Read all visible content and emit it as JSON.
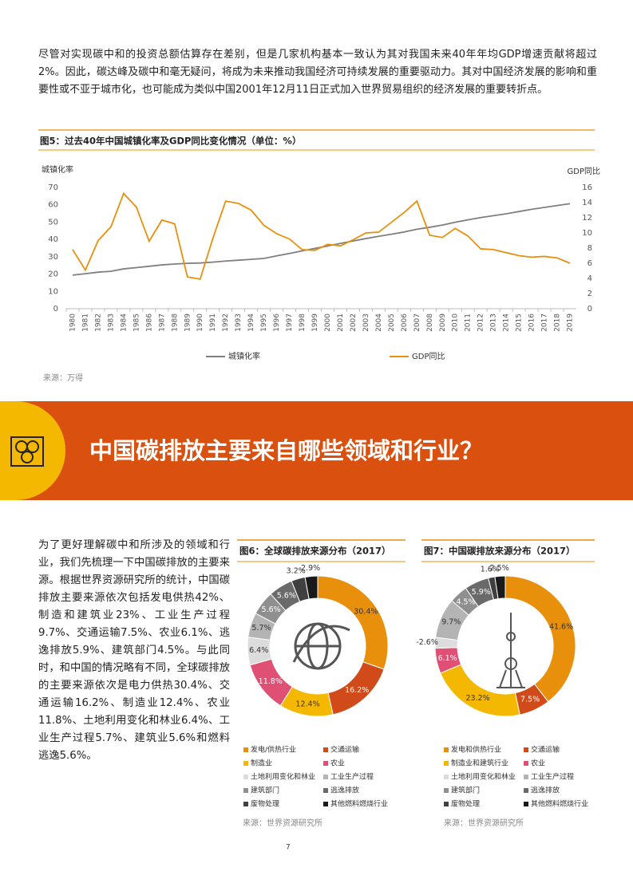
{
  "intro": "尽管对实现碳中和的投资总额估算存在差别，但是几家机构基本一致认为其对我国未来40年年均GDP增速贡献将超过2%。因此，碳达峰及碳中和毫无疑问，将成为未来推动我国经济可持续发展的重要驱动力。其对中国经济发展的影响和重要性或不亚于城市化，也可能成为类似中国2001年12月11日正式加入世界贸易组织的经济发展的重要转折点。",
  "banner": {
    "title": "中国碳排放主要来自哪些领域和行业？"
  },
  "body": "为了更好理解碳中和所涉及的领域和行业，我们先梳理一下中国碳排放的主要来源。根据世界资源研究所的统计，中国碳排放主要来源依次包括发电供热42%、制造和建筑业23%、工业生产过程9.7%、交通运输7.5%、农业6.1%、逃逸排放5.9%、建筑部门4.5%。与此同时，和中国的情况略有不同，全球碳排放的主要来源依次是电力供热30.4%、交通运输16.2%、制造业12.4%、农业11.8%、土地利用变化和林业6.4%、工业生产过程5.7%、建筑业5.6%和燃料逃逸5.6%。",
  "page_number": "7",
  "chart_data": [
    {
      "type": "line",
      "title": "图5：过去40年中国城镇化率及GDP同比变化情况（单位：%）",
      "ylabel": "城镇化率",
      "y2label": "GDP同比",
      "source": "来源：万得",
      "categories": [
        "1980",
        "1981",
        "1982",
        "1983",
        "1984",
        "1985",
        "1986",
        "1987",
        "1988",
        "1989",
        "1990",
        "1991",
        "1992",
        "1993",
        "1994",
        "1995",
        "1996",
        "1997",
        "1998",
        "1999",
        "2000",
        "2001",
        "2002",
        "2003",
        "2004",
        "2005",
        "2006",
        "2007",
        "2008",
        "2009",
        "2010",
        "2011",
        "2012",
        "2013",
        "2014",
        "2015",
        "2016",
        "2017",
        "2018",
        "2019"
      ],
      "series": [
        {
          "name": "城镇化率",
          "color": "#7f7f7f",
          "values": [
            19.4,
            20.2,
            21.1,
            21.6,
            23.0,
            23.7,
            24.5,
            25.3,
            25.8,
            26.2,
            26.4,
            26.9,
            27.5,
            28.0,
            28.5,
            29.0,
            30.5,
            31.9,
            33.4,
            34.8,
            36.2,
            37.7,
            39.1,
            40.5,
            41.8,
            43.0,
            44.3,
            45.9,
            47.0,
            48.3,
            49.9,
            51.3,
            52.6,
            53.7,
            54.8,
            56.1,
            57.4,
            58.5,
            59.6,
            60.6
          ]
        },
        {
          "name": "GDP同比",
          "color": "#e8900c",
          "axis": "y2",
          "values": [
            7.8,
            5.1,
            9.0,
            10.8,
            15.2,
            13.4,
            8.9,
            11.7,
            11.2,
            4.2,
            3.9,
            9.3,
            14.2,
            13.9,
            13.0,
            11.0,
            9.9,
            9.2,
            7.8,
            7.7,
            8.5,
            8.3,
            9.1,
            10.0,
            10.1,
            11.4,
            12.7,
            14.2,
            9.7,
            9.4,
            10.6,
            9.6,
            7.9,
            7.8,
            7.4,
            7.0,
            6.8,
            6.9,
            6.7,
            6.0
          ]
        }
      ],
      "ylim": [
        0,
        70
      ],
      "yticks": [
        0,
        10,
        20,
        30,
        40,
        50,
        60,
        70
      ],
      "y2lim": [
        0,
        16
      ],
      "y2ticks": [
        0,
        2,
        4,
        6,
        8,
        10,
        12,
        14,
        16
      ],
      "grid": false
    },
    {
      "type": "donut",
      "title": "图6：全球碳排放来源分布（2017）",
      "source": "来源：世界资源研究所",
      "categories": [
        "发电/供热行业",
        "交通运输",
        "制造业",
        "农业",
        "土地利用变化和林业",
        "工业生产过程",
        "建筑部门",
        "逃逸排放",
        "废物处理",
        "其他燃料燃烧行业"
      ],
      "values": [
        30.4,
        16.2,
        12.4,
        11.8,
        6.4,
        5.7,
        5.6,
        5.6,
        3.2,
        2.9
      ],
      "value_labels": [
        "30.4%",
        "16.2%",
        "12.4%",
        "11.8%",
        "6.4%",
        "5.7%",
        "5.6%",
        "5.6%",
        "3.2%",
        "2.9%"
      ],
      "colors": [
        "#e8900c",
        "#d04a1a",
        "#f5b800",
        "#e05075",
        "#dcdcdc",
        "#b4b4b4",
        "#8f8f8f",
        "#6a6a6a",
        "#404040",
        "#1a1a1a"
      ]
    },
    {
      "type": "donut",
      "title": "图7：中国碳排放来源分布（2017）",
      "source": "来源：世界资源研究所",
      "categories": [
        "发电和供热行业",
        "交通运输",
        "制造业和建筑行业",
        "农业",
        "土地利用变化和林业",
        "工业生产过程",
        "建筑部门",
        "逃逸排放",
        "废物处理",
        "其他燃料燃烧行业"
      ],
      "values": [
        41.6,
        7.5,
        23.2,
        6.1,
        -2.6,
        9.7,
        4.5,
        5.9,
        1.6,
        2.5
      ],
      "value_labels": [
        "41.6%",
        "7.5%",
        "23.2%",
        "6.1%",
        "-2.6%",
        "9.7%",
        "4.5%",
        "5.9%",
        "1.6%",
        "2.5%"
      ],
      "colors": [
        "#e8900c",
        "#d04a1a",
        "#f5b800",
        "#e05075",
        "#dcdcdc",
        "#b4b4b4",
        "#8f8f8f",
        "#6a6a6a",
        "#404040",
        "#1a1a1a"
      ]
    }
  ]
}
